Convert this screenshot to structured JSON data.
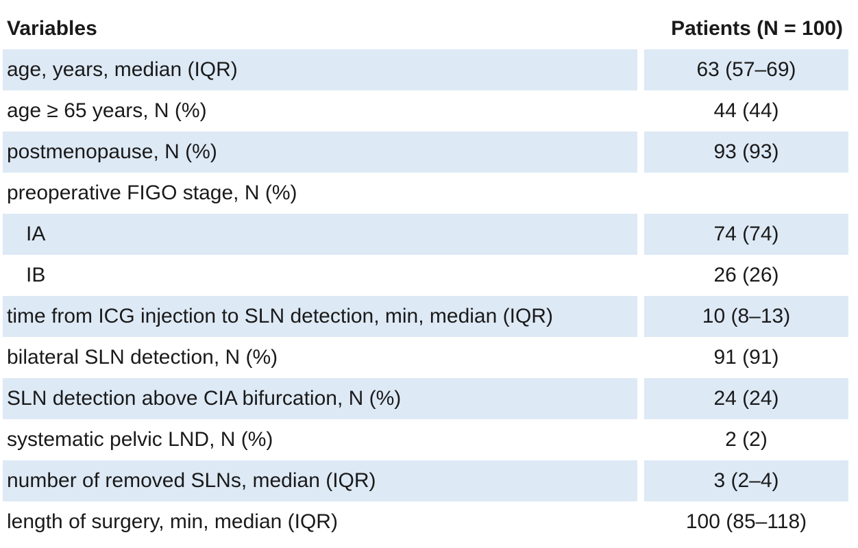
{
  "header": {
    "variables": "Variables",
    "patients": "Patients (N = 100)"
  },
  "rows": [
    {
      "label": "age, years, median (IQR)",
      "value": "63 (57–69)",
      "shaded": true,
      "indent": false
    },
    {
      "label": "age ≥ 65 years, N (%)",
      "value": "44 (44)",
      "shaded": false,
      "indent": false
    },
    {
      "label": "postmenopause, N (%)",
      "value": "93 (93)",
      "shaded": true,
      "indent": false
    },
    {
      "label": "preoperative FIGO stage, N (%)",
      "value": "",
      "shaded": false,
      "indent": false
    },
    {
      "label": "IA",
      "value": "74 (74)",
      "shaded": true,
      "indent": true
    },
    {
      "label": "IB",
      "value": "26 (26)",
      "shaded": false,
      "indent": true
    },
    {
      "label": "time from ICG injection to SLN detection, min, median (IQR)",
      "value": "10 (8–13)",
      "shaded": true,
      "indent": false
    },
    {
      "label": "bilateral SLN detection, N (%)",
      "value": "91 (91)",
      "shaded": false,
      "indent": false
    },
    {
      "label": "SLN detection above CIA bifurcation, N (%)",
      "value": "24 (24)",
      "shaded": true,
      "indent": false
    },
    {
      "label": "systematic pelvic LND, N (%)",
      "value": "2 (2)",
      "shaded": false,
      "indent": false
    },
    {
      "label": "number of removed SLNs, median (IQR)",
      "value": "3 (2–4)",
      "shaded": true,
      "indent": false
    },
    {
      "label": "length of surgery, min, median (IQR)",
      "value": "100 (85–118)",
      "shaded": false,
      "indent": false
    }
  ],
  "colors": {
    "shade": "#dde9f5",
    "text": "#1a1a1a"
  }
}
